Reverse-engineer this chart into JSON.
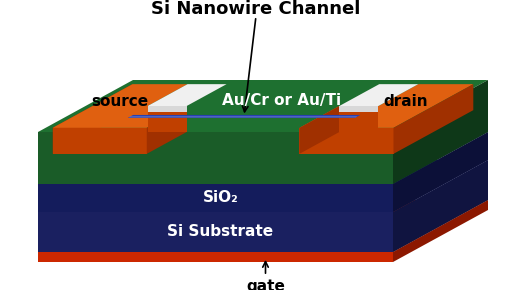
{
  "title": "Si Nanowire Channel",
  "label_source": "source",
  "label_drain": "drain",
  "label_aucr": "Au/Cr or Au/Ti",
  "label_sio2": "SiO₂",
  "label_substrate": "Si Substrate",
  "label_gate": "gate",
  "bg_color": "#ffffff",
  "title_color": "#000000",
  "title_fontsize": 13,
  "label_fontsize": 11,
  "gate_fontsize": 11,
  "source_drain_fontsize": 11,
  "color_orange_face": "#e06010",
  "color_orange_side": "#c04000",
  "color_orange_right": "#a03000",
  "color_green_face": "#1a5c28",
  "color_green_top": "#1e7030",
  "color_green_right": "#0e3818",
  "color_blue_face1": "#1a2060",
  "color_blue_top1": "#1e2878",
  "color_blue_right1": "#101440",
  "color_blue_face2": "#141c5c",
  "color_blue_top2": "#182470",
  "color_blue_right2": "#0c1038",
  "color_red_face": "#cc2800",
  "color_red_top": "#b83000",
  "color_red_right": "#8c1800",
  "color_white": "#f0f0f0",
  "color_nanowire": "#2840b0",
  "color_nanowire_hi": "#8090d8"
}
